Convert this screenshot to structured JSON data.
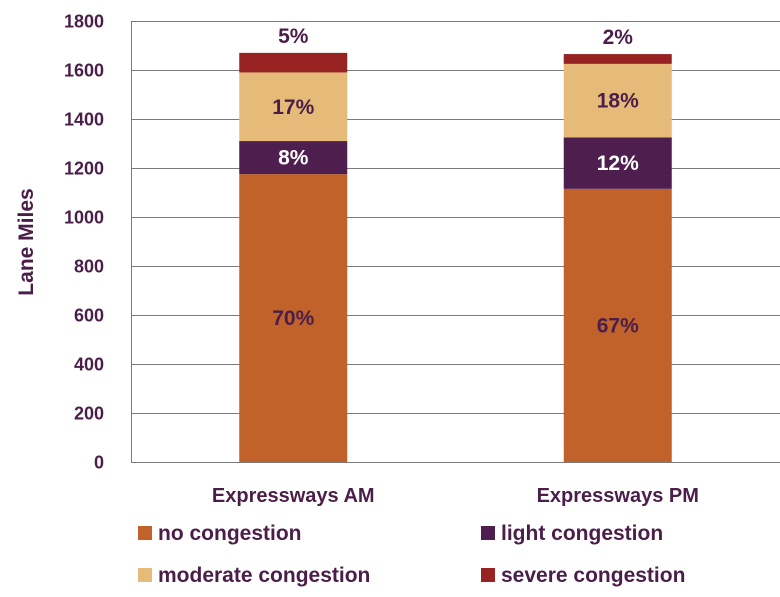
{
  "chart_data": {
    "type": "bar",
    "stacked": true,
    "categories": [
      "Expressways AM",
      "Expressways PM"
    ],
    "ylabel": "Lane Miles",
    "ylim": [
      0,
      1800
    ],
    "yticks": [
      0,
      200,
      400,
      600,
      800,
      1000,
      1200,
      1400,
      1600,
      1800
    ],
    "grid": true,
    "legend_position": "bottom",
    "series": [
      {
        "name": "no congestion",
        "color": "#c0622a",
        "values": [
          1175,
          1115
        ],
        "labels": [
          "70%",
          "67%"
        ]
      },
      {
        "name": "light congestion",
        "color": "#4e1e4e",
        "values": [
          135,
          210
        ],
        "labels": [
          "8%",
          "12%"
        ]
      },
      {
        "name": "moderate congestion",
        "color": "#e6bb7a",
        "values": [
          280,
          300
        ],
        "labels": [
          "17%",
          "18%"
        ]
      },
      {
        "name": "severe congestion",
        "color": "#962222",
        "values": [
          80,
          40
        ],
        "labels": [
          "5%",
          "2%"
        ]
      }
    ]
  }
}
